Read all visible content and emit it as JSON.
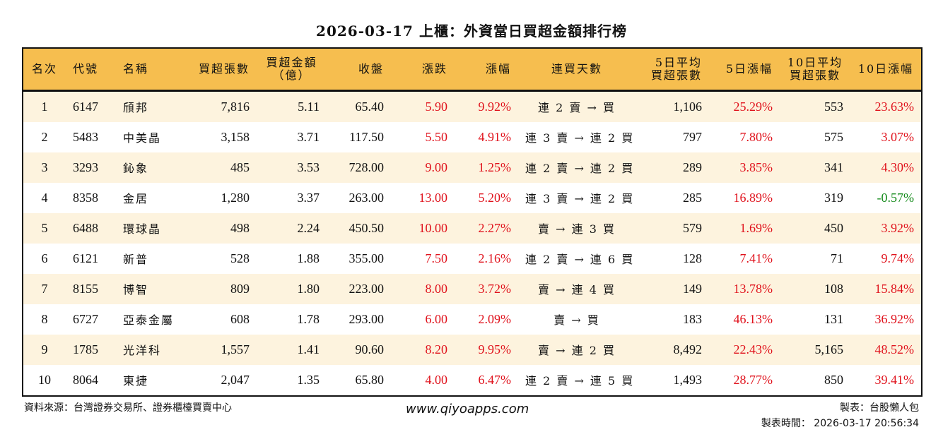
{
  "title": "2026-03-17 上櫃：外資當日買超金額排行榜",
  "colors": {
    "header_bg": "#f6be4f",
    "row_alt_bg": "#fdf3de",
    "up": "#e0121c",
    "down": "#138a1a"
  },
  "headers": [
    "名次",
    "代號",
    "名稱",
    "買超張數",
    "買超金額\n（億）",
    "收盤",
    "漲跌",
    "漲幅",
    "連買天數",
    "5日平均\n買超張數",
    "5日漲幅",
    "10日平均\n買超張數",
    "10日漲幅"
  ],
  "rows": [
    {
      "rank": "1",
      "code": "6147",
      "name": "頎邦",
      "net_shares": "7,816",
      "net_amount": "5.11",
      "close": "65.40",
      "change": "5.90",
      "pct": "9.92%",
      "streak": "連 2 賣 → 買",
      "avg5": "1,106",
      "pct5": "25.29%",
      "avg10": "553",
      "pct10": "23.63%"
    },
    {
      "rank": "2",
      "code": "5483",
      "name": "中美晶",
      "net_shares": "3,158",
      "net_amount": "3.71",
      "close": "117.50",
      "change": "5.50",
      "pct": "4.91%",
      "streak": "連 3 賣 → 連 2 買",
      "avg5": "797",
      "pct5": "7.80%",
      "avg10": "575",
      "pct10": "3.07%"
    },
    {
      "rank": "3",
      "code": "3293",
      "name": "鈊象",
      "net_shares": "485",
      "net_amount": "3.53",
      "close": "728.00",
      "change": "9.00",
      "pct": "1.25%",
      "streak": "連 2 賣 → 連 2 買",
      "avg5": "289",
      "pct5": "3.85%",
      "avg10": "341",
      "pct10": "4.30%"
    },
    {
      "rank": "4",
      "code": "8358",
      "name": "金居",
      "net_shares": "1,280",
      "net_amount": "3.37",
      "close": "263.00",
      "change": "13.00",
      "pct": "5.20%",
      "streak": "連 3 賣 → 連 2 買",
      "avg5": "285",
      "pct5": "16.89%",
      "avg10": "319",
      "pct10": "-0.57%"
    },
    {
      "rank": "5",
      "code": "6488",
      "name": "環球晶",
      "net_shares": "498",
      "net_amount": "2.24",
      "close": "450.50",
      "change": "10.00",
      "pct": "2.27%",
      "streak": "賣 → 連 3 買",
      "avg5": "579",
      "pct5": "1.69%",
      "avg10": "450",
      "pct10": "3.92%"
    },
    {
      "rank": "6",
      "code": "6121",
      "name": "新普",
      "net_shares": "528",
      "net_amount": "1.88",
      "close": "355.00",
      "change": "7.50",
      "pct": "2.16%",
      "streak": "連 2 賣 → 連 6 買",
      "avg5": "128",
      "pct5": "7.41%",
      "avg10": "71",
      "pct10": "9.74%"
    },
    {
      "rank": "7",
      "code": "8155",
      "name": "博智",
      "net_shares": "809",
      "net_amount": "1.80",
      "close": "223.00",
      "change": "8.00",
      "pct": "3.72%",
      "streak": "賣 → 連 4 買",
      "avg5": "149",
      "pct5": "13.78%",
      "avg10": "108",
      "pct10": "15.84%"
    },
    {
      "rank": "8",
      "code": "6727",
      "name": "亞泰金屬",
      "net_shares": "608",
      "net_amount": "1.78",
      "close": "293.00",
      "change": "6.00",
      "pct": "2.09%",
      "streak": "賣 → 買",
      "avg5": "183",
      "pct5": "46.13%",
      "avg10": "131",
      "pct10": "36.92%"
    },
    {
      "rank": "9",
      "code": "1785",
      "name": "光洋科",
      "net_shares": "1,557",
      "net_amount": "1.41",
      "close": "90.60",
      "change": "8.20",
      "pct": "9.95%",
      "streak": "賣 → 連 2 買",
      "avg5": "8,492",
      "pct5": "22.43%",
      "avg10": "5,165",
      "pct10": "48.52%"
    },
    {
      "rank": "10",
      "code": "8064",
      "name": "東捷",
      "net_shares": "2,047",
      "net_amount": "1.35",
      "close": "65.80",
      "change": "4.00",
      "pct": "6.47%",
      "streak": "連 2 賣 → 連 5 買",
      "avg5": "1,493",
      "pct5": "28.77%",
      "avg10": "850",
      "pct10": "39.41%"
    }
  ],
  "footer": {
    "source": "資料來源：台灣證券交易所、證券櫃檯買賣中心",
    "url": "www.qiyoapps.com",
    "author": "製表：台股懶人包",
    "made_time": "製表時間： 2026-03-17 20:56:34"
  }
}
